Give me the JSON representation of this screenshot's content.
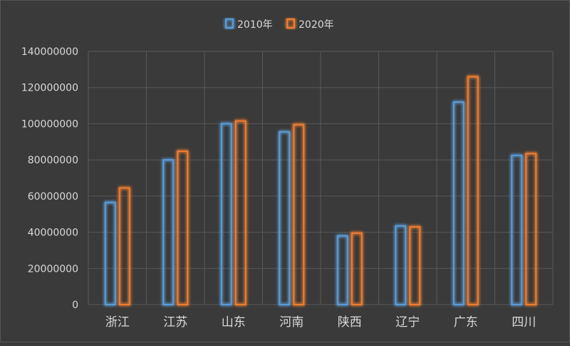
{
  "chart_data": {
    "type": "bar",
    "categories": [
      "浙江",
      "江苏",
      "山东",
      "河南",
      "陕西",
      "辽宁",
      "广东",
      "四川"
    ],
    "series": [
      {
        "name": "2010年",
        "color": "#5b9bd5",
        "values": [
          56500000,
          80000000,
          100000000,
          95500000,
          38000000,
          43500000,
          112000000,
          82500000
        ]
      },
      {
        "name": "2020年",
        "color": "#ed7d31",
        "values": [
          64500000,
          84800000,
          101500000,
          99500000,
          39500000,
          43000000,
          126000000,
          83500000
        ]
      }
    ],
    "ylim": [
      0,
      140000000
    ],
    "yticks": [
      0,
      20000000,
      40000000,
      60000000,
      80000000,
      100000000,
      120000000,
      140000000
    ],
    "grid": true,
    "legend": "top-center",
    "title": "",
    "xlabel": "",
    "ylabel": ""
  }
}
